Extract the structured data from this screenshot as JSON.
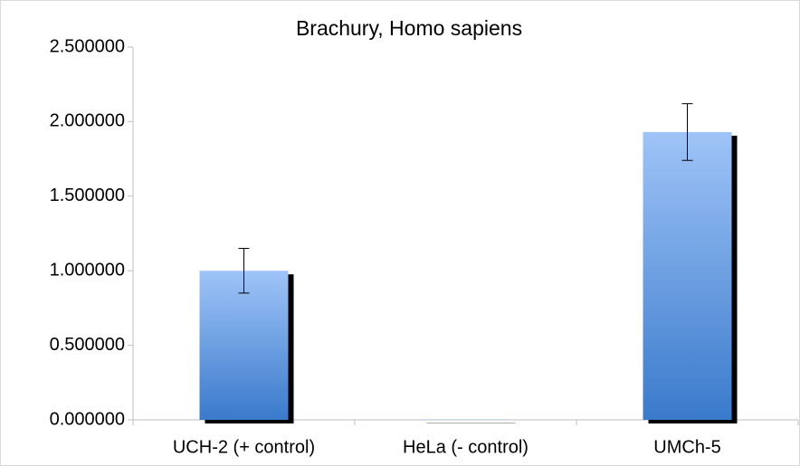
{
  "chart_data": {
    "type": "bar",
    "title": "Brachury, Homo sapiens",
    "categories": [
      "UCH-2 (+ control)",
      "HeLa (- control)",
      "UMCh-5"
    ],
    "values": [
      1.0,
      0.002,
      1.93
    ],
    "errors": [
      0.15,
      0,
      0.19
    ],
    "color": "#4a86d6",
    "ylim": [
      0,
      2.5
    ],
    "yticks": [
      {
        "value": 0,
        "label": "0.000000"
      },
      {
        "value": 0.5,
        "label": "0.500000"
      },
      {
        "value": 1,
        "label": "1.000000"
      },
      {
        "value": 1.5,
        "label": "1.500000"
      },
      {
        "value": 2,
        "label": "2.000000"
      },
      {
        "value": 2.5,
        "label": "2.500000"
      }
    ],
    "grid": false
  }
}
